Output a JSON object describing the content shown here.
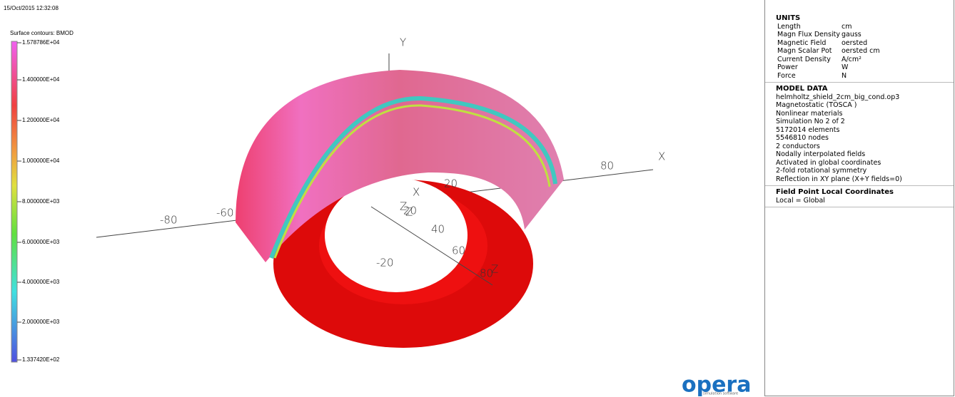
{
  "header": {
    "timestamp": "15/Oct/2015 12:32:08",
    "contour_title": "Surface contours: BMOD"
  },
  "legend": {
    "labels": [
      "1.578786E+04",
      "1.400000E+04",
      "1.200000E+04",
      "1.000000E+04",
      "8.000000E+03",
      "6.000000E+03",
      "4.000000E+03",
      "2.000000E+03",
      "1.337420E+02"
    ]
  },
  "scene": {
    "labels": [
      "Y",
      "X",
      "Z",
      "-80",
      "-60",
      "80",
      "X",
      "Z",
      "20",
      "20",
      "40",
      "60",
      "80",
      "-20",
      "Z"
    ]
  },
  "panel": {
    "units_title": "UNITS",
    "units": [
      [
        "Length",
        "cm"
      ],
      [
        "Magn Flux Density",
        "gauss"
      ],
      [
        "Magnetic Field",
        "oersted"
      ],
      [
        "Magn Scalar Pot",
        "oersted cm"
      ],
      [
        "Current Density",
        "A/cm²"
      ],
      [
        "Power",
        "W"
      ],
      [
        "Force",
        "N"
      ]
    ],
    "model_title": "MODEL DATA",
    "model_lines": [
      "helmholtz_shield_2cm_big_cond.op3",
      "Magnetostatic (TOSCA )",
      "Nonlinear materials",
      "Simulation No 2 of 2",
      "5172014 elements",
      "5546810 nodes",
      "2 conductors",
      "Nodally interpolated fields",
      "Activated in global coordinates",
      "2-fold rotational symmetry",
      "Reflection in XY plane (X+Y fields=0)"
    ],
    "field_title": "Field Point Local Coordinates",
    "field_line": "Local = Global"
  },
  "logo": {
    "name": "opera",
    "tagline": "simulation software"
  }
}
